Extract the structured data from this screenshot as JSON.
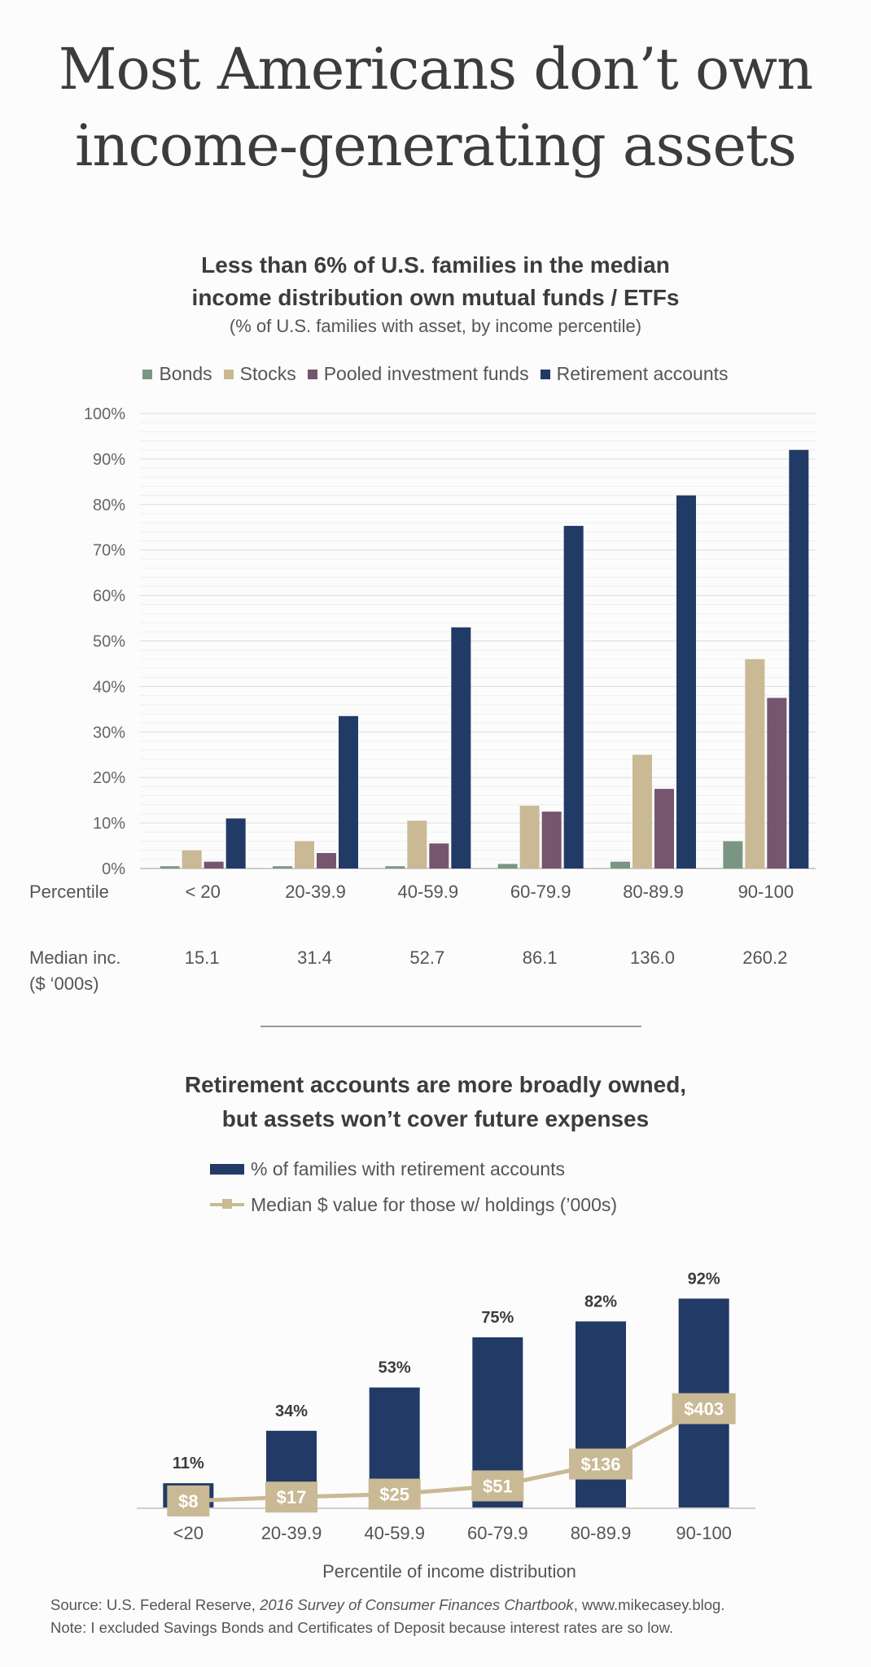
{
  "main_title": {
    "line1": "Most Americans don’t own",
    "line2": "income-generating assets"
  },
  "chart1": {
    "title_line1": "Less than 6% of U.S. families in the median",
    "title_line2": "income distribution own mutual funds / ETFs",
    "subtitle": "(% of U.S. families with asset, by income percentile)",
    "row_label_percentile": "Percentile",
    "row_label_income_line1": "Median inc.",
    "row_label_income_line2": "($ ‘000s)",
    "median_income": [
      "15.1",
      "31.4",
      "52.7",
      "86.1",
      "136.0",
      "260.2"
    ]
  },
  "chart2": {
    "title_line1": "Retirement accounts are more broadly owned,",
    "title_line2": "but assets won’t cover future expenses",
    "legend_bar": "% of families with retirement accounts",
    "legend_line": "Median $ value for those w/ holdings (’000s)",
    "x_axis_title": "Percentile of income distribution"
  },
  "footnote": {
    "source_prefix": "Source: U.S. Federal Reserve, ",
    "source_italic": "2016 Survey of Consumer Finances Chartbook",
    "source_suffix": ", www.mikecasey.blog.",
    "note": "Note: I excluded Savings Bonds and Certificates of Deposit because interest rates are so low."
  },
  "chart_data": [
    {
      "type": "bar",
      "title": "Less than 6% of U.S. families in the median income distribution own mutual funds / ETFs",
      "subtitle": "(% of U.S. families with asset, by income percentile)",
      "xlabel": "Percentile",
      "ylabel": "",
      "categories": [
        "< 20",
        "20-39.9",
        "40-59.9",
        "60-79.9",
        "80-89.9",
        "90-100"
      ],
      "ylim": [
        0,
        100
      ],
      "yticks": [
        "0%",
        "10%",
        "20%",
        "30%",
        "40%",
        "50%",
        "60%",
        "70%",
        "80%",
        "90%",
        "100%"
      ],
      "grid": true,
      "legend_position": "top",
      "series": [
        {
          "name": "Bonds",
          "color": "#7a9682",
          "values": [
            0.5,
            0.5,
            0.5,
            1.0,
            1.5,
            6.0
          ]
        },
        {
          "name": "Stocks",
          "color": "#c9b994",
          "values": [
            4.0,
            6.0,
            10.5,
            13.8,
            25.0,
            46.0
          ]
        },
        {
          "name": "Pooled investment funds",
          "color": "#76566e",
          "values": [
            1.5,
            3.4,
            5.5,
            12.5,
            17.5,
            37.5
          ]
        },
        {
          "name": "Retirement accounts",
          "color": "#223a66",
          "values": [
            11.0,
            33.5,
            53.0,
            75.3,
            82.0,
            92.0
          ]
        }
      ]
    },
    {
      "type": "bar",
      "title": "Retirement accounts are more broadly owned, but assets won’t cover future expenses",
      "xlabel": "Percentile of income distribution",
      "categories": [
        "<20",
        "20-39.9",
        "40-59.9",
        "60-79.9",
        "80-89.9",
        "90-100"
      ],
      "legend_position": "top",
      "series": [
        {
          "name": "% of families with retirement accounts",
          "color": "#223a66",
          "values": [
            11,
            34,
            53,
            75,
            82,
            92
          ],
          "labels": [
            "11%",
            "34%",
            "53%",
            "75%",
            "82%",
            "92%"
          ]
        },
        {
          "name": "Median $ value for those w/ holdings (’000s)",
          "type": "line",
          "color": "#c9b994",
          "values": [
            8,
            17,
            25,
            51,
            136,
            403
          ],
          "labels": [
            "$8",
            "$17",
            "$25",
            "$51",
            "$136",
            "$403"
          ]
        }
      ]
    }
  ]
}
